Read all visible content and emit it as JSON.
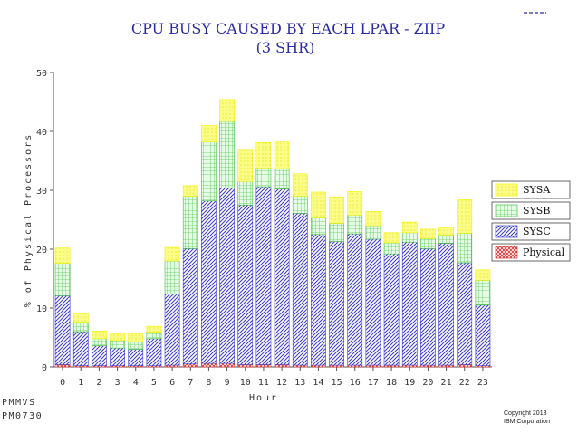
{
  "chart_data": {
    "type": "bar",
    "stacked": true,
    "title": "CPU BUSY CAUSED BY EACH LPAR - ZIIP",
    "subtitle": "(3 SHR)",
    "xlabel": "Hour",
    "ylabel": "% of Physical Processors",
    "ylim": [
      0,
      50
    ],
    "yticks": [
      0,
      10,
      20,
      30,
      40,
      50
    ],
    "categories": [
      "0",
      "1",
      "2",
      "3",
      "4",
      "5",
      "6",
      "7",
      "8",
      "9",
      "10",
      "11",
      "12",
      "13",
      "14",
      "15",
      "16",
      "17",
      "18",
      "19",
      "20",
      "21",
      "22",
      "23"
    ],
    "series": [
      {
        "name": "Physical",
        "color": "#e03030",
        "pattern": "cross-red",
        "values": [
          0.4,
          0.2,
          0.2,
          0.2,
          0.2,
          0.2,
          0.3,
          0.5,
          0.6,
          0.6,
          0.4,
          0.4,
          0.4,
          0.3,
          0.3,
          0.3,
          0.3,
          0.3,
          0.3,
          0.3,
          0.3,
          0.3,
          0.4,
          0.2
        ]
      },
      {
        "name": "SYSC",
        "color": "#3a3ad0",
        "pattern": "diag-blue",
        "values": [
          11.7,
          5.8,
          3.4,
          3.0,
          2.8,
          4.6,
          12.1,
          19.6,
          27.6,
          29.8,
          27.1,
          30.2,
          29.8,
          25.8,
          22.2,
          21.0,
          22.3,
          21.4,
          18.9,
          20.9,
          19.8,
          20.7,
          17.3,
          10.3
        ]
      },
      {
        "name": "SYSB",
        "color": "#40c040",
        "pattern": "grid-green",
        "values": [
          5.5,
          1.6,
          1.2,
          1.3,
          1.3,
          1.1,
          5.6,
          8.9,
          10.0,
          11.3,
          4.0,
          3.2,
          3.4,
          2.9,
          2.8,
          3.1,
          3.2,
          2.3,
          1.9,
          1.6,
          1.7,
          1.4,
          5.0,
          4.2
        ]
      },
      {
        "name": "SYSA",
        "color": "#f2f200",
        "pattern": "solid-yellow",
        "values": [
          2.6,
          1.4,
          1.3,
          1.1,
          1.3,
          1.0,
          2.3,
          1.8,
          2.8,
          3.7,
          5.3,
          4.3,
          4.6,
          3.8,
          4.4,
          4.5,
          4.0,
          2.4,
          1.7,
          1.8,
          1.6,
          1.3,
          5.7,
          1.8
        ]
      }
    ],
    "legend": {
      "position": "right",
      "order": [
        "SYSA",
        "SYSB",
        "SYSC",
        "Physical"
      ]
    }
  },
  "footer": {
    "left_line1": "PMMVS",
    "left_line2": "PM0730",
    "right_line1": "Copyright 2013",
    "right_line2": "IBM Corporation"
  }
}
